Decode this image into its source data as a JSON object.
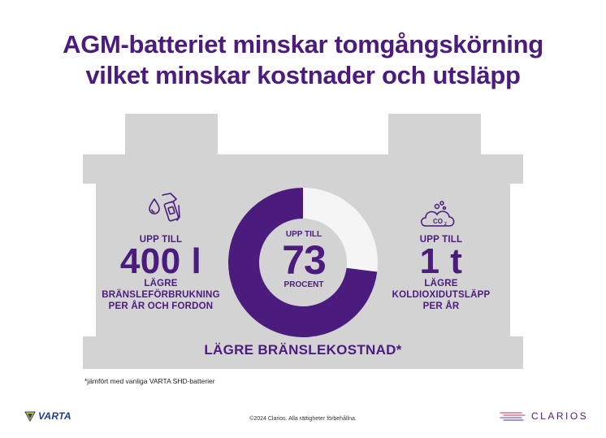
{
  "headline": {
    "line1": "AGM-batteriet minskar tomgångskörning",
    "line2": "vilket minskar kostnader och utsläpp"
  },
  "left_stat": {
    "prefix": "UPP TILL",
    "value": "400 l",
    "line1": "LÄGRE",
    "line2": "BRÄNSLEFÖRBRUKNING",
    "line3": "PER ÅR OCH FORDON",
    "icon": "fuel-nozzle-icon"
  },
  "center_stat": {
    "prefix": "UPP TILL",
    "value": "73",
    "suffix": "PROCENT",
    "percent": 73
  },
  "right_stat": {
    "prefix": "UPP TILL",
    "value": "1 t",
    "line1": "LÄGRE",
    "line2": "KOLDIOXIDUTSLÄPP",
    "line3": "PER ÅR",
    "icon": "co2-cloud-icon",
    "icon_label": "CO2"
  },
  "subtitle": "LÄGRE BRÄNSLEKOSTNAD*",
  "footnote": "*jämfört med vanliga VARTA SHD-batterier",
  "copyright": "©2024 Clarios. Alla rättigheter förbehållna.",
  "brands": {
    "left": "VARTA",
    "right": "CLARIOS"
  },
  "colors": {
    "primary": "#4b1b7e",
    "battery": "#d3d3d3",
    "donut_track": "#f5f5f5"
  }
}
